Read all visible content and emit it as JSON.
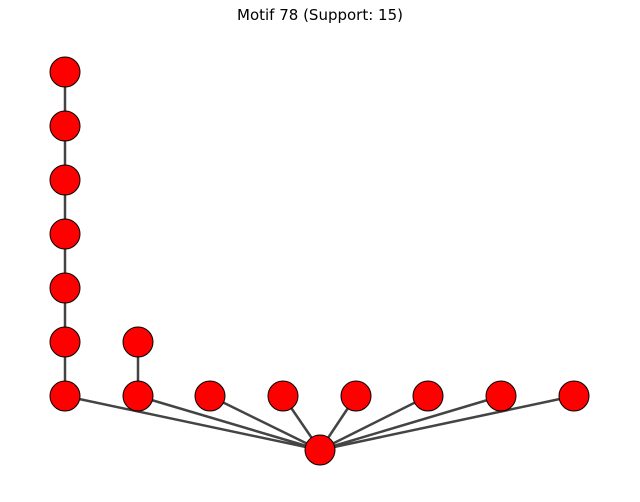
{
  "title": "Motif 78 (Support: 15)",
  "colors": {
    "node_fill": "#ff0000",
    "node_stroke": "#000000",
    "edge": "#444444",
    "background": "#ffffff"
  },
  "graph": {
    "nodes": [
      "n1",
      "n2",
      "n3",
      "n4",
      "n5",
      "n6",
      "n7",
      "n8",
      "n9",
      "n10",
      "n11",
      "n12",
      "n13",
      "n14",
      "n15",
      "hub"
    ],
    "edges": [
      [
        "n1",
        "n2"
      ],
      [
        "n2",
        "n3"
      ],
      [
        "n3",
        "n4"
      ],
      [
        "n4",
        "n5"
      ],
      [
        "n5",
        "n6"
      ],
      [
        "n6",
        "n7"
      ],
      [
        "n8",
        "n9"
      ],
      [
        "n7",
        "hub"
      ],
      [
        "n9",
        "hub"
      ],
      [
        "n10",
        "hub"
      ],
      [
        "n11",
        "hub"
      ],
      [
        "n12",
        "hub"
      ],
      [
        "n13",
        "hub"
      ],
      [
        "n14",
        "hub"
      ],
      [
        "n15",
        "hub"
      ]
    ]
  }
}
